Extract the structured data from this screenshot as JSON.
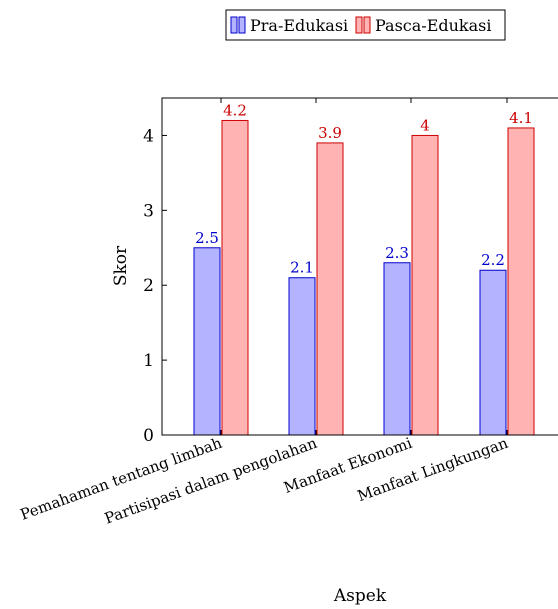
{
  "chart_data": {
    "type": "bar",
    "title": "",
    "xlabel": "Aspek",
    "ylabel": "Skor",
    "categories": [
      "Pemahaman tentang limbah",
      "Partisipasi dalam pengolahan",
      "Manfaat Ekonomi",
      "Manfaat Lingkungan"
    ],
    "series": [
      {
        "name": "Pra-Edukasi",
        "values": [
          2.5,
          2.1,
          2.3,
          2.2
        ],
        "labels": [
          "2.5",
          "2.1",
          "2.3",
          "2.2"
        ],
        "fill": "#b3b3ff",
        "stroke": "#0000cc",
        "label_color": "#0000cc"
      },
      {
        "name": "Pasca-Edukasi",
        "values": [
          4.2,
          3.9,
          4.0,
          4.1
        ],
        "labels": [
          "4.2",
          "3.9",
          "4",
          "4.1"
        ],
        "fill": "#ffb3b3",
        "stroke": "#cc0000",
        "label_color": "#cc0000"
      }
    ],
    "ylim": [
      0,
      4.5
    ],
    "yticks": [
      "0",
      "1",
      "2",
      "3",
      "4"
    ],
    "grid": false,
    "legend_position": "top-center"
  }
}
